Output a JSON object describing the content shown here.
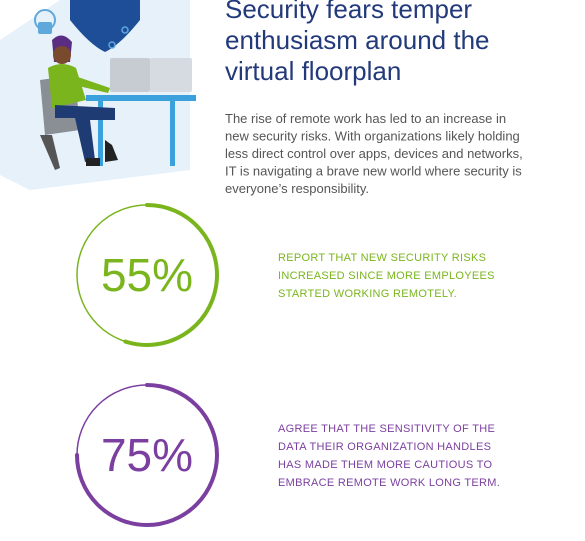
{
  "header": {
    "title_lines": [
      "Security fears temper",
      "enthusiasm around the",
      "virtual floorplan"
    ]
  },
  "intro_lines": [
    "The rise of remote work has led to an increase in",
    "new security risks. With organizations likely holding",
    "less direct control over apps, devices and networks,",
    "IT is navigating a brave new world where security is",
    "everyone’s responsibility."
  ],
  "stats": [
    {
      "value": 55,
      "label": "55%",
      "color": "#7ab51d",
      "text_lines": [
        "REPORT THAT NEW SECURITY RISKS",
        "INCREASED SINCE MORE EMPLOYEES",
        "STARTED WORKING REMOTELY."
      ]
    },
    {
      "value": 75,
      "label": "75%",
      "color": "#7b3fa0",
      "text_lines": [
        "AGREE THAT THE SENSITIVITY OF THE",
        "DATA THEIR ORGANIZATION HANDLES",
        "HAS MADE THEM MORE CAUTIOUS TO",
        "EMBRACE REMOTE WORK LONG TERM."
      ]
    }
  ]
}
